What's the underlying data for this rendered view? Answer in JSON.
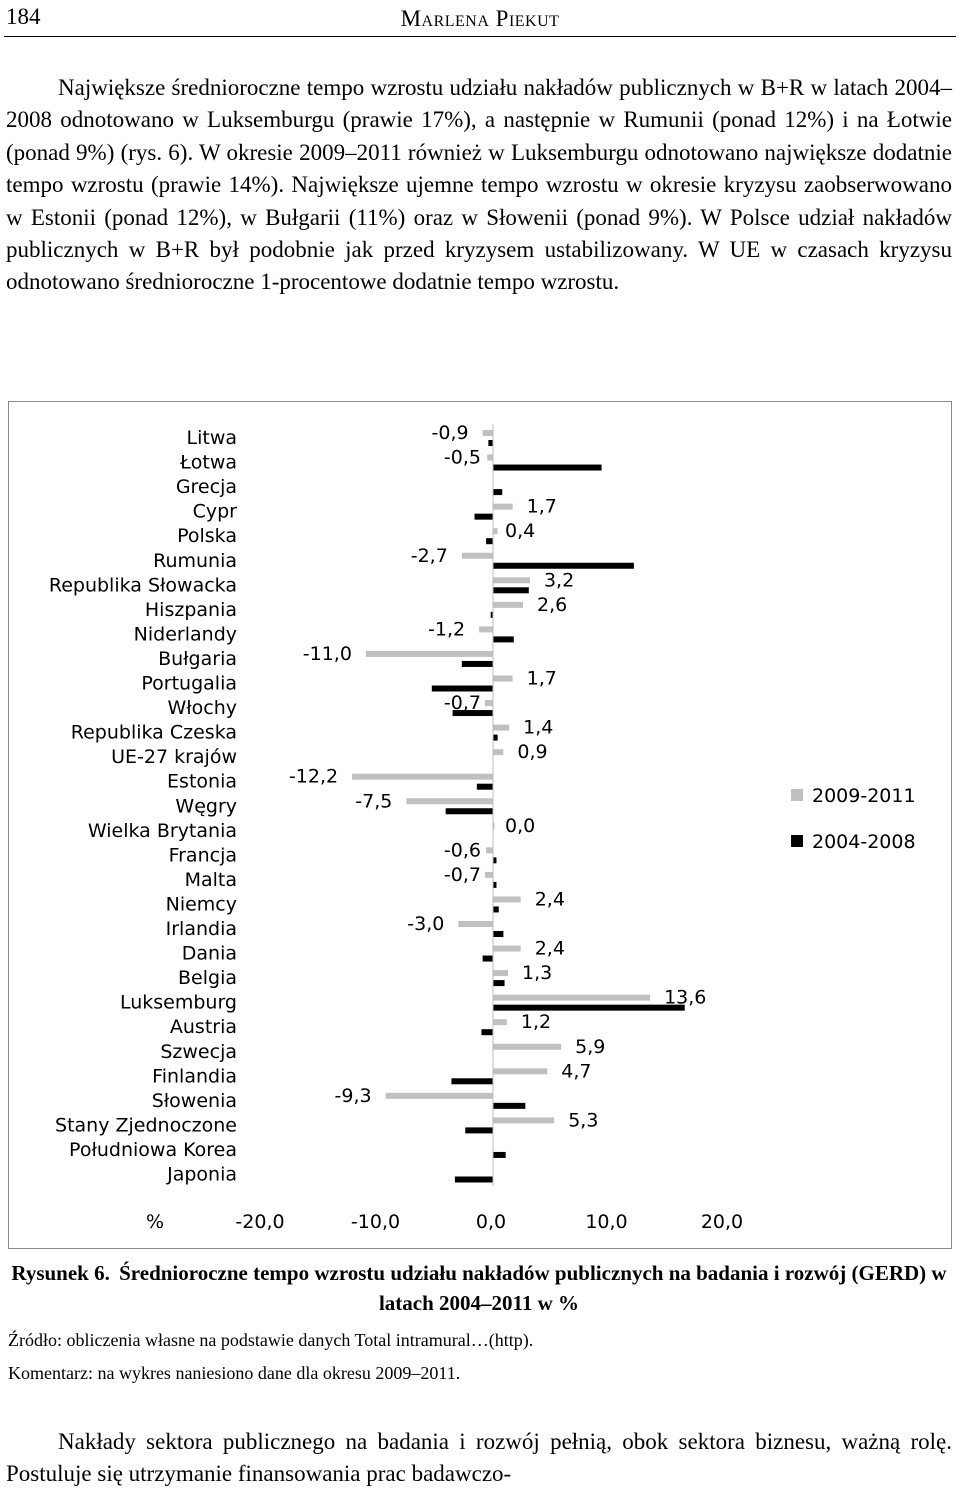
{
  "header": {
    "page_number": "184",
    "running_head": "Marlena Piekut"
  },
  "para1": "Największe średnioroczne tempo wzrostu udziału nakładów publicznych w B+R w latach 2004–2008 odnotowano w Luksemburgu (prawie 17%), a następnie w Rumunii (ponad 12%) i na Łotwie (ponad 9%) (rys. 6). W okresie 2009–2011 również w Luksemburgu odnotowano największe dodatnie tempo wzrostu (prawie 14%). Największe ujemne tempo wzrostu w okresie kryzysu zaobserwowano w Estonii (ponad 12%), w Bułgarii (11%) oraz w Słowenii (ponad 9%). W Polsce udział nakładów publicznych w B+R był podobnie jak przed kryzysem ustabilizowany. W UE w czasach kryzysu odnotowano średnioroczne 1-procentowe dodatnie tempo wzrostu.",
  "chart_data": {
    "type": "bar",
    "orientation": "horizontal",
    "categories": [
      "Litwa",
      "Łotwa",
      "Grecja",
      "Cypr",
      "Polska",
      "Rumunia",
      "Republika Słowacka",
      "Hiszpania",
      "Niderlandy",
      "Bułgaria",
      "Portugalia",
      "Włochy",
      "Republika Czeska",
      "UE-27 krajów",
      "Estonia",
      "Węgry",
      "Wielka Brytania",
      "Francja",
      "Malta",
      "Niemcy",
      "Irlandia",
      "Dania",
      "Belgia",
      "Luksemburg",
      "Austria",
      "Szwecja",
      "Finlandia",
      "Słowenia",
      "Stany Zjednoczone",
      "Południowa Korea",
      "Japonia"
    ],
    "series": [
      {
        "name": "2009-2011",
        "color": "#c0c0c0",
        "values": [
          -0.9,
          -0.5,
          null,
          1.7,
          0.4,
          -2.7,
          3.2,
          2.6,
          -1.2,
          -11.0,
          1.7,
          -0.7,
          1.4,
          0.9,
          -12.2,
          -7.5,
          0.0,
          -0.6,
          -0.7,
          2.4,
          -3.0,
          2.4,
          1.3,
          13.6,
          1.2,
          5.9,
          4.7,
          -9.3,
          5.3,
          null,
          null
        ],
        "labels": [
          "-0,9",
          "-0,5",
          "",
          "1,7",
          "0,4",
          "-2,7",
          "3,2",
          "2,6",
          "-1,2",
          "-11,0",
          "1,7",
          "-0,7",
          "1,4",
          "0,9",
          "-12,2",
          "-7,5",
          "0,0",
          "-0,6",
          "-0,7",
          "2,4",
          "-3,0",
          "2,4",
          "1,3",
          "13,6",
          "1,2",
          "5,9",
          "4,7",
          "-9,3",
          "5,3",
          "",
          ""
        ]
      },
      {
        "name": "2004-2008",
        "color": "#000000",
        "values": [
          -0.4,
          9.4,
          0.8,
          -1.6,
          -0.6,
          12.2,
          3.1,
          -0.2,
          1.8,
          -2.7,
          -5.3,
          -3.5,
          0.4,
          null,
          -1.4,
          -4.1,
          null,
          0.3,
          0.3,
          0.5,
          0.9,
          -0.9,
          1.0,
          16.6,
          -1.0,
          null,
          -3.6,
          2.8,
          -2.4,
          1.1,
          -3.3
        ]
      }
    ],
    "xaxis": {
      "ticks": [
        "-20,0",
        "-10,0",
        "0,0",
        "10,0",
        "20,0"
      ],
      "unit": "%",
      "range": [
        -20,
        20
      ]
    },
    "legend": {
      "position": "right",
      "entries": [
        "2009-2011",
        "2004-2008"
      ]
    }
  },
  "caption": {
    "label": "Rysunek 6.",
    "text": "Średnioroczne tempo wzrostu udziału nakładów publicznych na badania i rozwój (GERD) w latach 2004–2011 w %"
  },
  "source": "Źródło: obliczenia własne na podstawie danych Total intramural…(http).",
  "comment": "Komentarz: na wykres naniesiono dane dla okresu 2009–2011.",
  "para2": "Nakłady sektora publicznego na badania i rozwój pełnią, obok sektora biznesu, ważną rolę. Postuluje się utrzymanie finansowania prac badawczo-"
}
